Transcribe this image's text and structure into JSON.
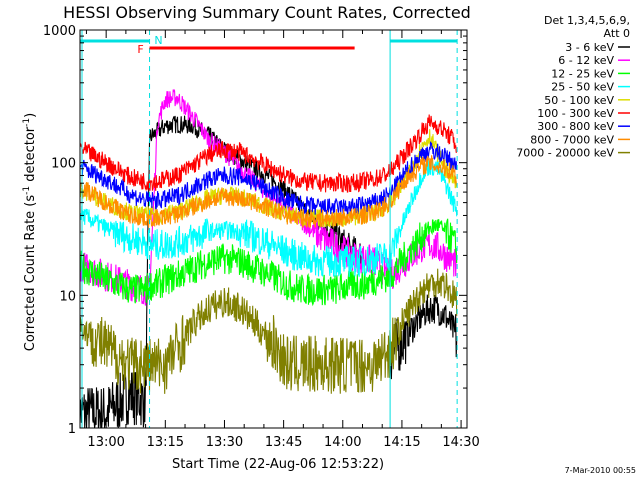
{
  "chart_data": {
    "type": "line",
    "title": "HESSI Observing Summary Count Rates, Corrected",
    "xlabel": "Start Time (22-Aug-06 12:53:22)",
    "ylabel_main": "Corrected Count Rate (s",
    "ylabel_sup1": "-1",
    "ylabel_mid": " detector",
    "ylabel_sup2": "-1",
    "ylabel_end": ")",
    "ylog": true,
    "ylim": [
      1,
      1000
    ],
    "xlim": [
      "12:53:22",
      "14:31:30"
    ],
    "xticks": [
      "13:00",
      "13:15",
      "13:30",
      "13:45",
      "14:00",
      "14:15",
      "14:30"
    ],
    "yticks": [
      "1",
      "10",
      "100",
      "1000"
    ],
    "footer": "7-Mar-2010 00:55",
    "legend_header": [
      "Det 1,3,4,5,6,9,",
      "Att 0"
    ],
    "flag_labels": [
      "F",
      "N"
    ],
    "markers": {
      "night_intervals": [
        [
          "12:53:22",
          "13:11"
        ],
        [
          "14:12",
          "14:29"
        ]
      ],
      "flare_interval": [
        "13:11",
        "14:03"
      ]
    },
    "time_knots": [
      "12:53",
      "13:00",
      "13:06",
      "13:10",
      "13:11",
      "13:13",
      "13:15",
      "13:18",
      "13:22",
      "13:26",
      "13:30",
      "13:34",
      "13:38",
      "13:42",
      "13:46",
      "13:50",
      "13:54",
      "13:58",
      "14:02",
      "14:05",
      "14:08",
      "14:12",
      "14:16",
      "14:20",
      "14:22",
      "14:24",
      "14:26",
      "14:28",
      "14:29"
    ],
    "series": [
      {
        "name": "3 - 6 keV",
        "color": "#000000",
        "values": [
          1.3,
          1.3,
          1.8,
          1.6,
          155,
          170,
          190,
          195,
          190,
          160,
          125,
          105,
          90,
          75,
          60,
          45,
          35,
          28,
          22,
          20,
          0,
          3.5,
          5,
          7,
          8,
          8,
          7,
          5.5,
          4.5
        ]
      },
      {
        "name": "6 - 12 keV",
        "color": "#ff00ff",
        "values": [
          17,
          14,
          12,
          11,
          11,
          200,
          300,
          310,
          220,
          150,
          120,
          90,
          70,
          55,
          45,
          35,
          28,
          24,
          20,
          19,
          18,
          14,
          18,
          23,
          24,
          23,
          20,
          18,
          16
        ]
      },
      {
        "name": "12 - 25 keV",
        "color": "#00ff00",
        "values": [
          17,
          13,
          11,
          11,
          12,
          12,
          13,
          14,
          16,
          18,
          19,
          18,
          16,
          14,
          12,
          11,
          11,
          11,
          12,
          12,
          13,
          14,
          20,
          28,
          32,
          34,
          30,
          26,
          22
        ]
      },
      {
        "name": "25 - 50 keV",
        "color": "#00ffff",
        "values": [
          42,
          32,
          27,
          25,
          24,
          24,
          24,
          25,
          27,
          30,
          31,
          30,
          27,
          24,
          21,
          19,
          18,
          18,
          18,
          18,
          19,
          20,
          40,
          80,
          95,
          90,
          70,
          50,
          45
        ]
      },
      {
        "name": "50 - 100 keV",
        "color": "#dddd00",
        "values": [
          65,
          50,
          42,
          40,
          40,
          40,
          41,
          43,
          48,
          54,
          57,
          55,
          50,
          45,
          41,
          38,
          38,
          38,
          39,
          40,
          42,
          50,
          75,
          130,
          160,
          120,
          90,
          75,
          65
        ]
      },
      {
        "name": "100 - 300 keV",
        "color": "#ff0000",
        "values": [
          130,
          100,
          78,
          72,
          72,
          72,
          75,
          80,
          95,
          115,
          125,
          120,
          105,
          90,
          78,
          72,
          70,
          70,
          70,
          72,
          75,
          85,
          120,
          170,
          200,
          190,
          170,
          150,
          130
        ]
      },
      {
        "name": "300 - 800 keV",
        "color": "#0000ff",
        "values": [
          95,
          75,
          58,
          52,
          52,
          52,
          53,
          56,
          65,
          75,
          80,
          78,
          70,
          60,
          52,
          48,
          46,
          46,
          46,
          48,
          50,
          58,
          85,
          115,
          125,
          120,
          110,
          100,
          90
        ]
      },
      {
        "name": "800 - 7000 keV",
        "color": "#ff8c00",
        "values": [
          68,
          50,
          40,
          38,
          38,
          38,
          39,
          41,
          46,
          52,
          56,
          54,
          49,
          44,
          40,
          38,
          38,
          38,
          39,
          40,
          42,
          50,
          75,
          95,
          98,
          95,
          90,
          85,
          75
        ]
      },
      {
        "name": "7000 - 20000 keV",
        "color": "#808000",
        "values": [
          6,
          4,
          3,
          3,
          3,
          3,
          3,
          4,
          6,
          8,
          9,
          8,
          6,
          4.5,
          3,
          3,
          3,
          3,
          3,
          3,
          3,
          4,
          7,
          11,
          12,
          13,
          12,
          10,
          9
        ]
      }
    ]
  }
}
